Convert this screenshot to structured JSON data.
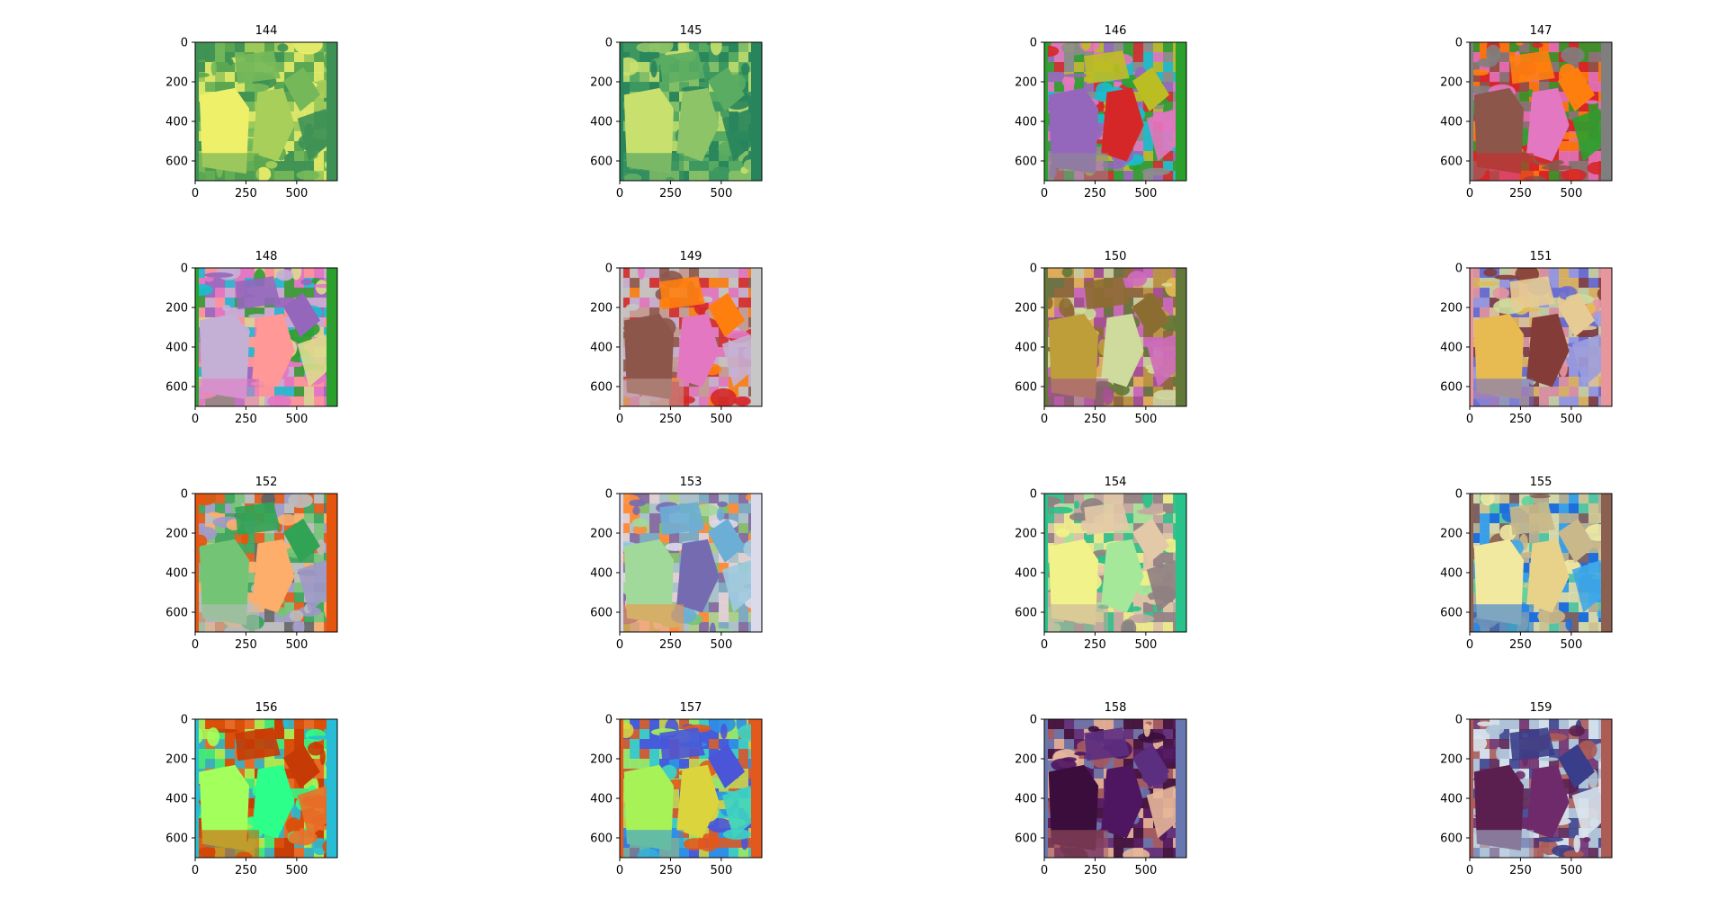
{
  "chart_data": {
    "type": "image-grid",
    "panel_count": 16,
    "xlim": [
      0,
      700
    ],
    "ylim": [
      700,
      0
    ],
    "x_ticks": [
      0,
      250,
      500
    ],
    "y_ticks": [
      0,
      200,
      400,
      600
    ],
    "panels": [
      {
        "title": "144",
        "palette": [
          "#eef06a",
          "#a8cf5a",
          "#74b85a",
          "#5aa651",
          "#3e9155"
        ]
      },
      {
        "title": "145",
        "palette": [
          "#c8e06e",
          "#8ec468",
          "#5aac62",
          "#3d9760",
          "#27845c"
        ]
      },
      {
        "title": "146",
        "palette": [
          "#9467bd",
          "#d62728",
          "#bcbd22",
          "#8c8c8c",
          "#e377c2",
          "#17becf",
          "#2ca02c"
        ]
      },
      {
        "title": "147",
        "palette": [
          "#8c564b",
          "#e377c2",
          "#ff7f0e",
          "#d62728",
          "#2ca02c",
          "#7f7f7f"
        ]
      },
      {
        "title": "148",
        "palette": [
          "#c5b0d5",
          "#ff9896",
          "#9467bd",
          "#e377c2",
          "#dbdb8d",
          "#17becf",
          "#2ca02c"
        ]
      },
      {
        "title": "149",
        "palette": [
          "#8c564b",
          "#e377c2",
          "#ff7f0e",
          "#c49c94",
          "#c5b0d5",
          "#d62728",
          "#c7c7c7"
        ]
      },
      {
        "title": "150",
        "palette": [
          "#bd9e39",
          "#cedb9c",
          "#8c6d31",
          "#a55194",
          "#ce6dbd",
          "#e7ba52",
          "#637939"
        ]
      },
      {
        "title": "151",
        "palette": [
          "#e7ba52",
          "#843c39",
          "#e7cb94",
          "#6b6ecf",
          "#9c9ede",
          "#cedb9c",
          "#e7969c"
        ]
      },
      {
        "title": "152",
        "palette": [
          "#74c476",
          "#fdae6b",
          "#31a354",
          "#bdbdbd",
          "#9e9ac8",
          "#636363",
          "#e6550d"
        ]
      },
      {
        "title": "153",
        "palette": [
          "#a1d99b",
          "#756bb1",
          "#6baed6",
          "#fd8d3c",
          "#9ecae1",
          "#74c476",
          "#dadaeb"
        ]
      },
      {
        "title": "154",
        "palette": [
          "#f2f28a",
          "#a6e89a",
          "#e3c9a8",
          "#c4a9a0",
          "#8f7f82",
          "#27c38a"
        ]
      },
      {
        "title": "155",
        "palette": [
          "#f2e9a1",
          "#e8d28a",
          "#c9b88a",
          "#1f6fdc",
          "#3fa8e8",
          "#5fd39a",
          "#8c6051"
        ]
      },
      {
        "title": "156",
        "palette": [
          "#a3ff5c",
          "#2cff8a",
          "#c63a06",
          "#d94f0a",
          "#e9702a",
          "#27bdd6"
        ]
      },
      {
        "title": "157",
        "palette": [
          "#a6f257",
          "#dbd43c",
          "#4a55d8",
          "#2f8fe6",
          "#3fd3c0",
          "#e3581c"
        ]
      },
      {
        "title": "158",
        "palette": [
          "#3a0d3c",
          "#4e1560",
          "#5c2e80",
          "#a45a62",
          "#e7b79a",
          "#6977b0"
        ]
      },
      {
        "title": "159",
        "palette": [
          "#5a1f4f",
          "#6e2a6a",
          "#3a3e8a",
          "#aec3d8",
          "#d8e3ec",
          "#ad5b55"
        ]
      }
    ]
  }
}
